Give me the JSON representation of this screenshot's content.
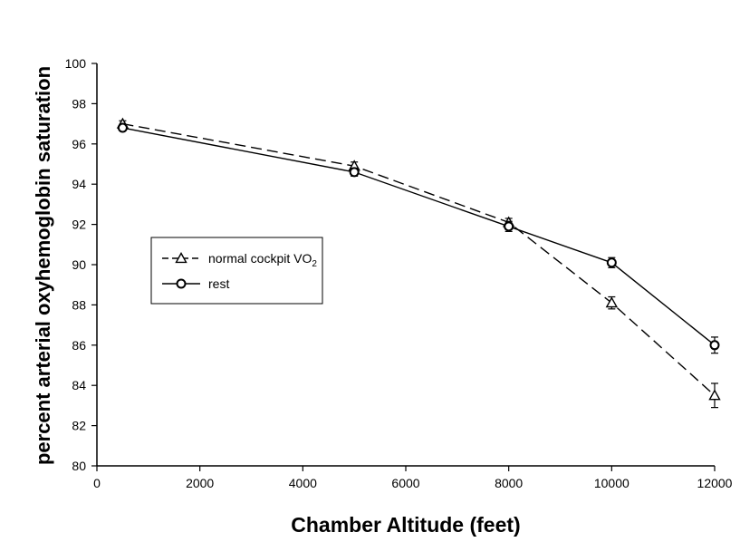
{
  "chart_data": {
    "type": "line",
    "title": "",
    "xlabel": "Chamber Altitude (feet)",
    "ylabel": "percent arterial oxyhemoglobin saturation",
    "xlim": [
      0,
      12000
    ],
    "ylim": [
      80,
      100
    ],
    "x_ticks": [
      0,
      2000,
      4000,
      6000,
      8000,
      10000,
      12000
    ],
    "y_ticks": [
      80,
      82,
      84,
      86,
      88,
      90,
      92,
      94,
      96,
      98,
      100
    ],
    "grid": false,
    "legend_position": "center-left",
    "series": [
      {
        "name": "normal cockpit VO",
        "name_subscript": "2",
        "marker": "triangle",
        "line_style": "dashed",
        "color": "#000000",
        "x": [
          500,
          5000,
          8000,
          10000,
          12000
        ],
        "y": [
          97.0,
          94.9,
          92.1,
          88.1,
          83.5
        ],
        "error": [
          0.15,
          0.2,
          0.2,
          0.3,
          0.6
        ]
      },
      {
        "name": "rest",
        "marker": "circle",
        "line_style": "solid",
        "color": "#000000",
        "x": [
          500,
          5000,
          8000,
          10000,
          12000
        ],
        "y": [
          96.8,
          94.6,
          91.9,
          90.1,
          86.0
        ],
        "error": [
          0.15,
          0.2,
          0.25,
          0.25,
          0.4
        ]
      }
    ]
  }
}
